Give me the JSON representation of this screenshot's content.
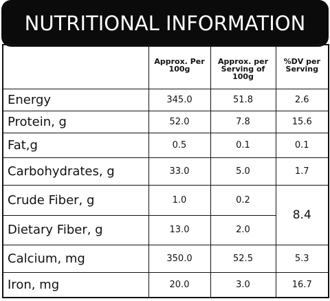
{
  "header": {
    "title": "NUTRITIONAL INFORMATION"
  },
  "table": {
    "columns": [
      "Approx. Per 100g",
      "Approx. per Serving of 100g",
      "%DV per Serving"
    ],
    "rows": [
      [
        "Energy",
        "345.0",
        "51.8",
        "2.6"
      ],
      [
        "Protein, g",
        "52.0",
        "7.8",
        "15.6"
      ],
      [
        "Fat,g",
        "0.5",
        "0.1",
        "0.1"
      ],
      [
        "Carbohydrates, g",
        "33.0",
        "5.0",
        "1.7"
      ],
      [
        "Crude Fiber, g",
        "1.0",
        "0.2",
        "8.4"
      ],
      [
        "Dietary Fiber, g",
        "13.0",
        "2.0"
      ],
      [
        "Calcium, mg",
        "350.0",
        "52.5",
        "5.3"
      ],
      [
        "Iron, mg",
        "20.0",
        "3.0",
        "16.7"
      ]
    ]
  }
}
